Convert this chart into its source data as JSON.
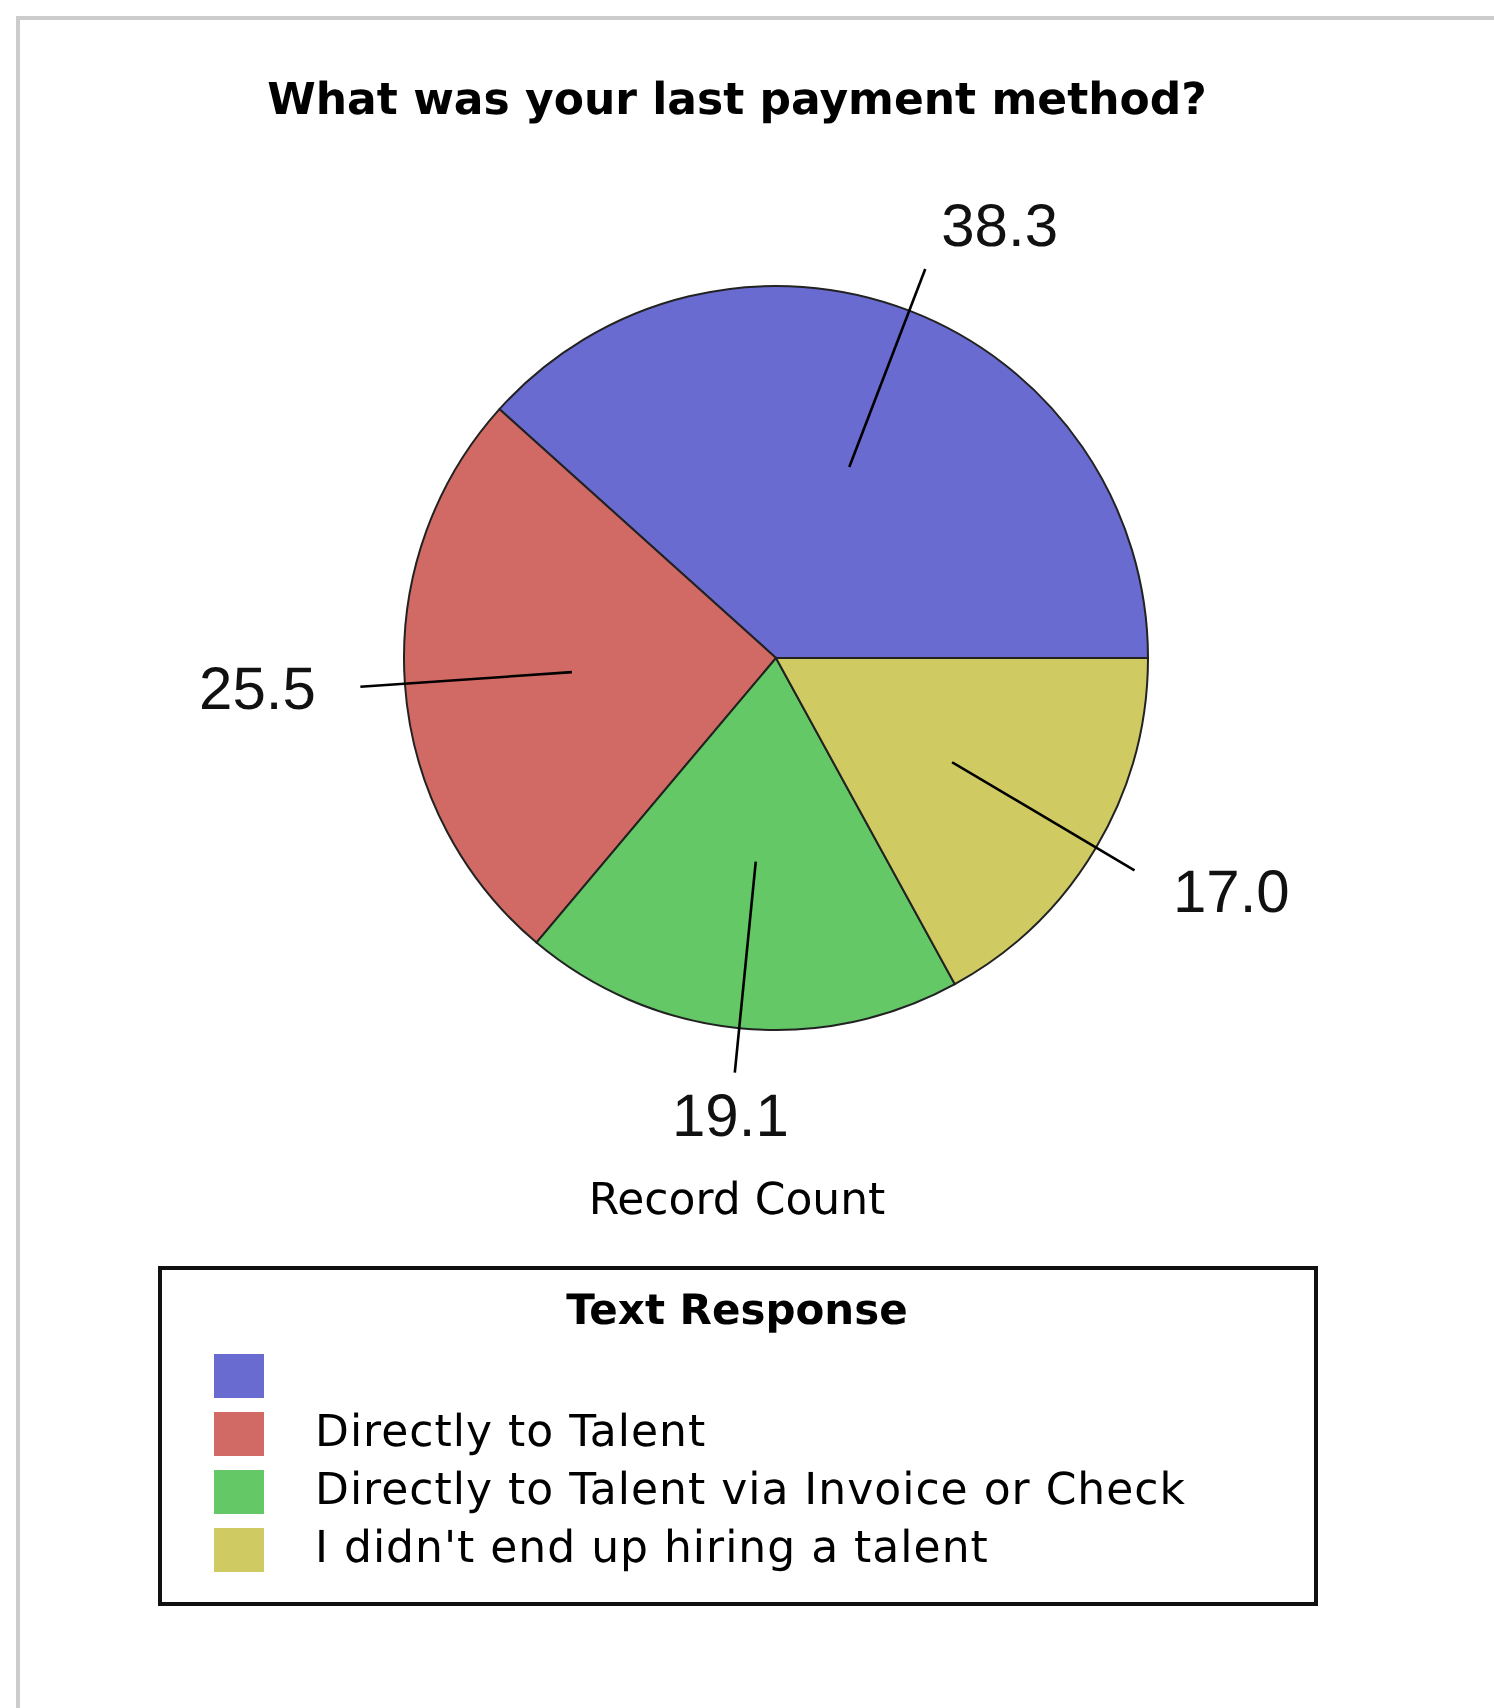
{
  "chart_data": {
    "type": "pie",
    "title": "What was your last payment method?",
    "xlabel": "Record Count",
    "legend_title": "Text Response",
    "legend": "bottom",
    "categories": [
      null,
      "Directly to Talent",
      "Directly to Talent via Invoice or Check",
      "I didn't end up hiring a talent"
    ],
    "values": [
      38.3,
      25.5,
      19.1,
      17.0
    ],
    "value_labels": [
      "38.3",
      "25.5",
      "19.1",
      "17.0"
    ],
    "colors": [
      "#6a6bd0",
      "#d16a65",
      "#63c865",
      "#cfca62"
    ]
  }
}
